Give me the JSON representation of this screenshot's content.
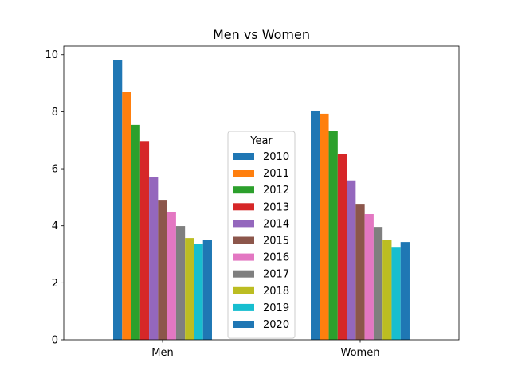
{
  "chart_data": {
    "type": "bar",
    "title": "Men vs Women",
    "xlabel": "",
    "ylabel": "",
    "categories": [
      "Men",
      "Women"
    ],
    "ylim": [
      0,
      10.3
    ],
    "yticks": [
      0,
      2,
      4,
      6,
      8,
      10
    ],
    "grid": false,
    "legend": {
      "title": "Year",
      "placement": "center"
    },
    "series": [
      {
        "name": "2010",
        "color": "#1f77b4",
        "values": [
          9.82,
          8.04
        ]
      },
      {
        "name": "2011",
        "color": "#ff7f0e",
        "values": [
          8.7,
          7.93
        ]
      },
      {
        "name": "2012",
        "color": "#2ca02c",
        "values": [
          7.54,
          7.33
        ]
      },
      {
        "name": "2013",
        "color": "#d62728",
        "values": [
          6.97,
          6.53
        ]
      },
      {
        "name": "2014",
        "color": "#9467bd",
        "values": [
          5.7,
          5.59
        ]
      },
      {
        "name": "2015",
        "color": "#8c564b",
        "values": [
          4.91,
          4.77
        ]
      },
      {
        "name": "2016",
        "color": "#e377c2",
        "values": [
          4.49,
          4.41
        ]
      },
      {
        "name": "2017",
        "color": "#7f7f7f",
        "values": [
          3.99,
          3.96
        ]
      },
      {
        "name": "2018",
        "color": "#bcbd22",
        "values": [
          3.57,
          3.51
        ]
      },
      {
        "name": "2019",
        "color": "#17becf",
        "values": [
          3.36,
          3.26
        ]
      },
      {
        "name": "2020",
        "color": "#1f77b4",
        "values": [
          3.51,
          3.43
        ]
      }
    ]
  }
}
